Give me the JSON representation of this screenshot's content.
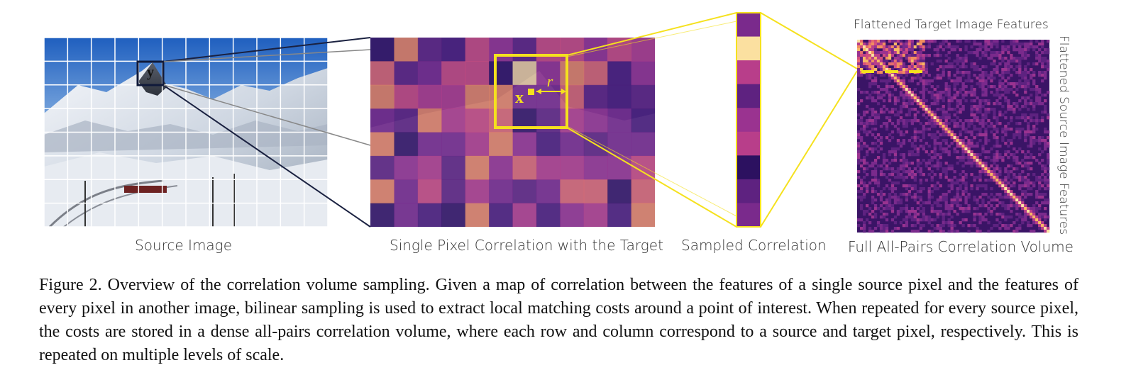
{
  "figure": {
    "labels": {
      "source_image": "Source Image",
      "single_pixel": "Single Pixel Correlation with the Target",
      "sampled": "Sampled Correlation",
      "full_volume": "Full All-Pairs Correlation Volume",
      "flattened_target": "Flattened Target Image Features",
      "flattened_source": "Flattened Source Image Features"
    },
    "symbols": {
      "y": "y",
      "x": "x",
      "r": "r"
    },
    "colors": {
      "highlight_yellow": "#f5e11e",
      "sky_blue": "#2d6bc4",
      "magma_dark": "#1a0b40",
      "magma_mid": "#7a2a8c",
      "magma_hot": "#f0a060"
    }
  },
  "caption": {
    "text": "Figure 2. Overview of the correlation volume sampling. Given a map of correlation between the features of a single source pixel and the features of every pixel in another image, bilinear sampling is used to extract local matching costs around a point of interest. When repeated for every source pixel, the costs are stored in a dense all-pairs correlation volume, where each row and column correspond to a source and target pixel, respectively. This is repeated on multiple levels of scale."
  }
}
